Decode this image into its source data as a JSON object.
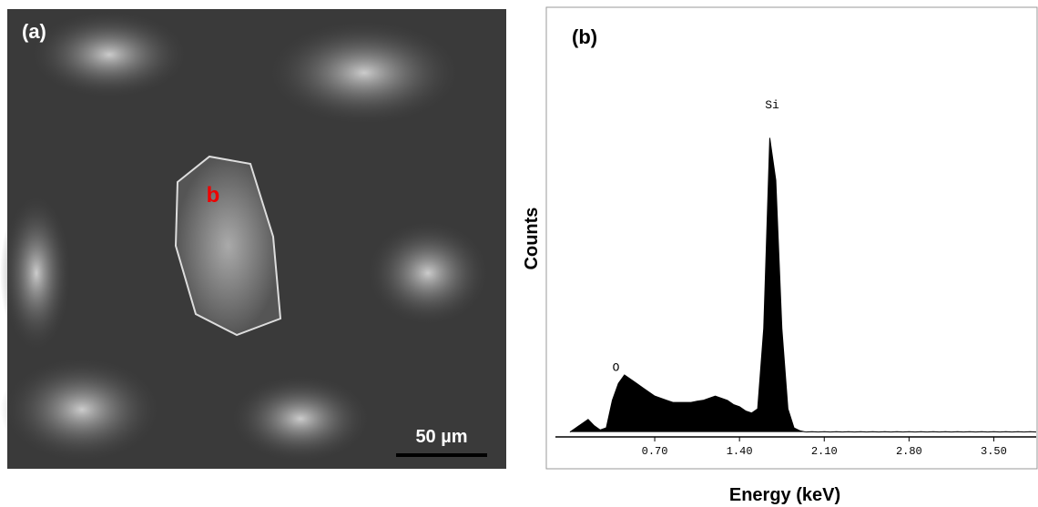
{
  "panel_a": {
    "label": "(a)",
    "marker": "b",
    "scale_bar": "50 µm"
  },
  "chart_data": {
    "type": "area",
    "panel_label": "(b)",
    "xlabel": "Energy (keV)",
    "ylabel": "Counts",
    "color": "#000000",
    "xlim": [
      -0.12,
      3.85
    ],
    "ylim": [
      0,
      100
    ],
    "xticks": [
      {
        "value": 0.7,
        "label": "0.70"
      },
      {
        "value": 1.4,
        "label": "1.40"
      },
      {
        "value": 2.1,
        "label": "2.10"
      },
      {
        "value": 2.8,
        "label": "2.80"
      },
      {
        "value": 3.5,
        "label": "3.50"
      }
    ],
    "x": [
      0,
      0.05,
      0.1,
      0.15,
      0.2,
      0.25,
      0.3,
      0.35,
      0.4,
      0.45,
      0.5,
      0.55,
      0.6,
      0.65,
      0.7,
      0.75,
      0.8,
      0.85,
      0.9,
      0.95,
      1,
      1.05,
      1.1,
      1.15,
      1.2,
      1.25,
      1.3,
      1.35,
      1.4,
      1.45,
      1.5,
      1.55,
      1.6,
      1.65,
      1.7,
      1.75,
      1.8,
      1.85,
      1.9,
      1.95,
      2,
      2.05,
      2.1,
      2.15,
      2.2,
      2.25,
      2.3,
      2.35,
      2.4,
      2.45,
      2.5,
      2.55,
      2.6,
      2.65,
      2.7,
      2.75,
      2.8,
      2.85,
      2.9,
      2.95,
      3,
      3.05,
      3.1,
      3.15,
      3.2,
      3.25,
      3.3,
      3.35,
      3.4,
      3.45,
      3.5,
      3.55,
      3.6,
      3.65,
      3.7,
      3.75,
      3.8,
      3.85
    ],
    "values": [
      0.5,
      1.5,
      2.5,
      3.5,
      2,
      1,
      1.5,
      8,
      12,
      14,
      13,
      12,
      11,
      10,
      9,
      8.5,
      8,
      7.5,
      7.5,
      7.5,
      7.5,
      7.8,
      8,
      8.5,
      9,
      8.5,
      8,
      7,
      6.5,
      5.5,
      5,
      6,
      25,
      70,
      60,
      25,
      6,
      1.5,
      0.8,
      0.5,
      0.6,
      0.5,
      0.6,
      0.5,
      0.6,
      0.5,
      0.6,
      0.5,
      0.6,
      0.5,
      0.6,
      0.5,
      0.6,
      0.5,
      0.6,
      0.5,
      0.6,
      0.5,
      0.6,
      0.5,
      0.6,
      0.5,
      0.6,
      0.5,
      0.6,
      0.5,
      0.6,
      0.5,
      0.6,
      0.5,
      0.6,
      0.5,
      0.6,
      0.5,
      0.6,
      0.5,
      0.6,
      0.5
    ],
    "annotations": [
      {
        "text": "O",
        "x": 0.38,
        "y": 15
      },
      {
        "text": "Si",
        "x": 1.67,
        "y": 77
      }
    ]
  }
}
